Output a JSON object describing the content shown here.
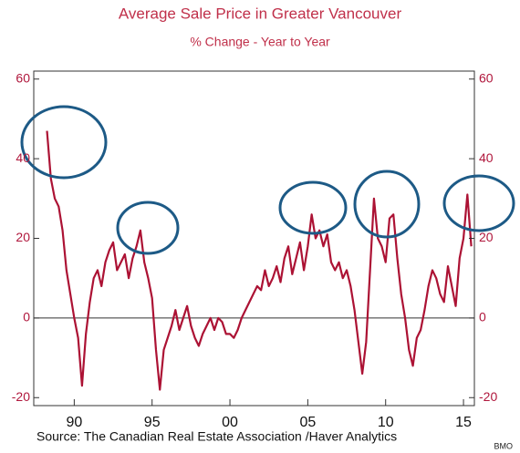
{
  "chart_data": {
    "type": "line",
    "title": "Average Sale Price in Greater Vancouver",
    "subtitle": "% Change - Year to Year",
    "source": "Source:  The Canadian Real Estate Association /Haver Analytics",
    "credit": "BMO",
    "color": "#ac1234",
    "reference_line": 0,
    "xlim": [
      1987.4,
      2015.7
    ],
    "xticks": [
      {
        "value": 1990,
        "label": "90"
      },
      {
        "value": 1995,
        "label": "95"
      },
      {
        "value": 2000,
        "label": "00"
      },
      {
        "value": 2005,
        "label": "05"
      },
      {
        "value": 2010,
        "label": "10"
      },
      {
        "value": 2015,
        "label": "15"
      }
    ],
    "ylim": [
      -22,
      62
    ],
    "yticks": [
      -20,
      0,
      20,
      40,
      60
    ],
    "y2lim": [
      -22,
      62
    ],
    "y2ticks": [
      -20,
      0,
      20,
      40,
      60
    ],
    "x": [
      1988.25,
      1988.5,
      1988.75,
      1989,
      1989.25,
      1989.5,
      1989.75,
      1990,
      1990.25,
      1990.5,
      1990.75,
      1991,
      1991.25,
      1991.5,
      1991.75,
      1992,
      1992.25,
      1992.5,
      1992.75,
      1993,
      1993.25,
      1993.5,
      1993.75,
      1994,
      1994.25,
      1994.5,
      1994.75,
      1995,
      1995.25,
      1995.5,
      1995.75,
      1996,
      1996.25,
      1996.5,
      1996.75,
      1997,
      1997.25,
      1997.5,
      1997.75,
      1998,
      1998.25,
      1998.5,
      1998.75,
      1999,
      1999.25,
      1999.5,
      1999.75,
      2000,
      2000.25,
      2000.5,
      2000.75,
      2001,
      2001.25,
      2001.5,
      2001.75,
      2002,
      2002.25,
      2002.5,
      2002.75,
      2003,
      2003.25,
      2003.5,
      2003.75,
      2004,
      2004.25,
      2004.5,
      2004.75,
      2005,
      2005.25,
      2005.5,
      2005.75,
      2006,
      2006.25,
      2006.5,
      2006.75,
      2007,
      2007.25,
      2007.5,
      2007.75,
      2008,
      2008.25,
      2008.5,
      2008.75,
      2009,
      2009.25,
      2009.5,
      2009.75,
      2010,
      2010.25,
      2010.5,
      2010.75,
      2011,
      2011.25,
      2011.5,
      2011.75,
      2012,
      2012.25,
      2012.5,
      2012.75,
      2013,
      2013.25,
      2013.5,
      2013.75,
      2014,
      2014.25,
      2014.5,
      2014.75,
      2015,
      2015.25,
      2015.5
    ],
    "values": [
      47,
      35,
      30,
      28,
      22,
      12,
      6,
      0,
      -5,
      -17,
      -4,
      4,
      10,
      12,
      8,
      14,
      17,
      19,
      12,
      14,
      16,
      10,
      15,
      18,
      22,
      14,
      10,
      5,
      -8,
      -18,
      -8,
      -5,
      -2,
      2,
      -3,
      0,
      3,
      -2,
      -5,
      -7,
      -4,
      -2,
      0,
      -3,
      0,
      -1,
      -4,
      -4,
      -5,
      -3,
      0,
      2,
      4,
      6,
      8,
      7,
      12,
      8,
      10,
      13,
      9,
      15,
      18,
      11,
      15,
      19,
      12,
      18,
      26,
      20,
      22,
      18,
      21,
      14,
      12,
      14,
      10,
      12,
      8,
      2,
      -6,
      -14,
      -6,
      12,
      30,
      20,
      18,
      14,
      25,
      26,
      15,
      6,
      0,
      -8,
      -12,
      -5,
      -3,
      2,
      8,
      12,
      10,
      6,
      4,
      13,
      8,
      3,
      15,
      20,
      31,
      18
    ]
  }
}
